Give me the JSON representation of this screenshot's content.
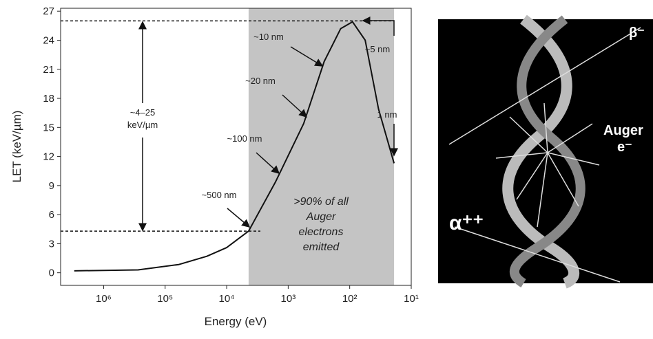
{
  "chart_data": {
    "type": "line",
    "xlabel": "Energy (eV)",
    "ylabel": "LET (keV/µm)",
    "log_x": true,
    "xlim": [
      5000000,
      10
    ],
    "ylim": [
      -1.3,
      27.3
    ],
    "xticks": [
      {
        "value": 1000000,
        "label": "10⁶"
      },
      {
        "value": 100000,
        "label": "10⁵"
      },
      {
        "value": 10000,
        "label": "10⁴"
      },
      {
        "value": 1000,
        "label": "10³"
      },
      {
        "value": 100,
        "label": "10²"
      },
      {
        "value": 10,
        "label": "10¹"
      }
    ],
    "yticks": [
      0,
      3,
      6,
      9,
      12,
      15,
      18,
      21,
      24,
      27
    ],
    "x": [
      3000000,
      275000,
      60000,
      21000,
      10000,
      4400,
      1600,
      560,
      260,
      140,
      90,
      56,
      34,
      19
    ],
    "series": [
      {
        "color": "#111111",
        "values": [
          0.2,
          0.3,
          0.85,
          1.7,
          2.6,
          4.3,
          9.4,
          15.4,
          21.8,
          25.2,
          25.9,
          24,
          16.9,
          11.3
        ]
      }
    ],
    "shaded_range": [
      4400,
      19
    ],
    "shade_color": "#c4c4c4",
    "dashed_levels": [
      26,
      4.3
    ],
    "annotations": {
      "let_range": [
        "~4–25",
        "keV/µm"
      ],
      "nm10": "~10 nm",
      "nm20": "~20 nm",
      "nm100": "~100 nm",
      "nm500": "~500 nm",
      "nm5": "~5 nm",
      "nm1": "1 nm",
      "shaded_text": [
        ">90% of all",
        "Auger",
        "electrons",
        "emitted"
      ]
    }
  },
  "image_panel": {
    "beta": "β⁻",
    "auger": [
      "Auger",
      "e⁻"
    ],
    "alpha": "α⁺⁺"
  }
}
